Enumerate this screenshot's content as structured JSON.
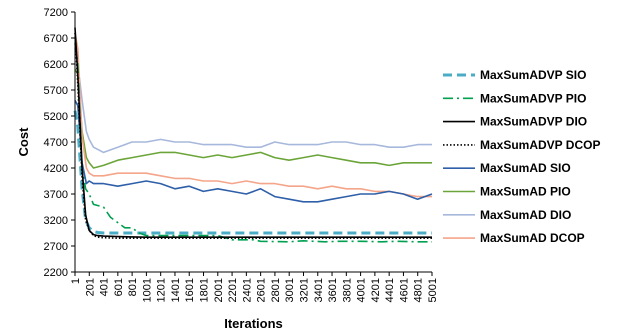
{
  "chart_data": {
    "type": "line",
    "title": "",
    "xlabel": "Iterations",
    "ylabel": "Cost",
    "ylim": [
      2200,
      7200
    ],
    "xlim": [
      1,
      5001
    ],
    "yticks": [
      2200,
      2700,
      3200,
      3700,
      4200,
      4700,
      5200,
      5700,
      6200,
      6700,
      7200
    ],
    "xticks": [
      1,
      201,
      401,
      601,
      801,
      1001,
      1201,
      1401,
      1601,
      1801,
      2001,
      2201,
      2401,
      2601,
      2801,
      3001,
      3201,
      3401,
      3601,
      3801,
      4001,
      4201,
      4401,
      4601,
      4801,
      5001
    ],
    "grid": false,
    "legend_position": "right",
    "series": [
      {
        "name": "MaxSumADVP SIO",
        "color": "#4BACC6",
        "style": "dashed-thick",
        "x": [
          1,
          40,
          100,
          150,
          200,
          260,
          320,
          400,
          600,
          1000,
          2000,
          3000,
          4000,
          5001
        ],
        "y": [
          5300,
          5000,
          3800,
          3200,
          3050,
          2980,
          2960,
          2950,
          2950,
          2950,
          2950,
          2950,
          2950,
          2950
        ]
      },
      {
        "name": "MaxSumADVP PIO",
        "color": "#00A050",
        "style": "dashdot",
        "x": [
          1,
          40,
          100,
          150,
          200,
          260,
          400,
          500,
          600,
          700,
          800,
          900,
          1000,
          1200,
          1500,
          2000,
          2200,
          2500,
          2600,
          3000,
          3200,
          3500,
          3700,
          4000,
          4300,
          4500,
          4800,
          5001
        ],
        "y": [
          6600,
          6200,
          4200,
          3800,
          3700,
          3500,
          3450,
          3250,
          3150,
          3050,
          3050,
          2950,
          2900,
          2900,
          2900,
          2900,
          2820,
          2820,
          2790,
          2780,
          2800,
          2780,
          2790,
          2790,
          2780,
          2790,
          2780,
          2780
        ]
      },
      {
        "name": "MaxSumADVP DIO",
        "color": "#000000",
        "style": "solid",
        "x": [
          1,
          40,
          100,
          150,
          200,
          260,
          320,
          400,
          600,
          1000,
          2000,
          3000,
          4000,
          5001
        ],
        "y": [
          6900,
          6000,
          4200,
          3300,
          3000,
          2920,
          2900,
          2890,
          2880,
          2870,
          2870,
          2870,
          2870,
          2870
        ]
      },
      {
        "name": "MaxSumADVP DCOP",
        "color": "#000000",
        "style": "dotted",
        "x": [
          1,
          40,
          100,
          150,
          200,
          260,
          320,
          400,
          600,
          1000,
          2000,
          3000,
          4000,
          5001
        ],
        "y": [
          6800,
          5800,
          4000,
          3200,
          3000,
          2900,
          2870,
          2860,
          2850,
          2850,
          2850,
          2850,
          2850,
          2850
        ]
      },
      {
        "name": "MaxSumAD SIO",
        "color": "#2E5FA8",
        "style": "solid",
        "x": [
          1,
          40,
          100,
          160,
          200,
          260,
          400,
          600,
          800,
          1000,
          1200,
          1400,
          1600,
          1800,
          2000,
          2200,
          2400,
          2600,
          2800,
          3000,
          3200,
          3400,
          3600,
          3800,
          4000,
          4200,
          4400,
          4600,
          4800,
          5001
        ],
        "y": [
          5500,
          5400,
          4300,
          3900,
          3950,
          3900,
          3900,
          3850,
          3900,
          3950,
          3900,
          3800,
          3850,
          3750,
          3800,
          3750,
          3700,
          3800,
          3650,
          3600,
          3550,
          3550,
          3600,
          3650,
          3700,
          3700,
          3750,
          3700,
          3600,
          3700
        ]
      },
      {
        "name": "MaxSumAD PIO",
        "color": "#6BA539",
        "style": "solid",
        "x": [
          1,
          40,
          100,
          160,
          200,
          260,
          400,
          600,
          800,
          1000,
          1200,
          1400,
          1600,
          1800,
          2000,
          2200,
          2400,
          2600,
          2800,
          3000,
          3200,
          3400,
          3600,
          3800,
          4000,
          4200,
          4400,
          4600,
          4800,
          5001
        ],
        "y": [
          6100,
          6000,
          4900,
          4400,
          4300,
          4200,
          4250,
          4350,
          4400,
          4450,
          4500,
          4500,
          4450,
          4400,
          4450,
          4400,
          4450,
          4500,
          4400,
          4350,
          4400,
          4450,
          4400,
          4350,
          4300,
          4300,
          4250,
          4300,
          4300,
          4300
        ]
      },
      {
        "name": "MaxSumAD DIO",
        "color": "#A6B8DC",
        "style": "solid",
        "x": [
          1,
          40,
          100,
          160,
          200,
          260,
          400,
          600,
          800,
          1000,
          1200,
          1400,
          1600,
          1800,
          2000,
          2200,
          2400,
          2600,
          2800,
          3000,
          3200,
          3400,
          3600,
          3800,
          4000,
          4200,
          4400,
          4600,
          4800,
          5001
        ],
        "y": [
          6500,
          6200,
          5500,
          4900,
          4750,
          4600,
          4500,
          4600,
          4700,
          4700,
          4750,
          4700,
          4700,
          4650,
          4650,
          4650,
          4600,
          4600,
          4700,
          4650,
          4650,
          4650,
          4700,
          4700,
          4650,
          4650,
          4600,
          4600,
          4650,
          4650
        ]
      },
      {
        "name": "MaxSumAD DCOP",
        "color": "#F4A58A",
        "style": "solid",
        "x": [
          1,
          40,
          100,
          160,
          200,
          260,
          400,
          600,
          800,
          1000,
          1200,
          1400,
          1600,
          1800,
          2000,
          2200,
          2400,
          2600,
          2800,
          3000,
          3200,
          3400,
          3600,
          3800,
          4000,
          4200,
          4400,
          4600,
          4800,
          5001
        ],
        "y": [
          6800,
          6500,
          4800,
          4200,
          4100,
          4050,
          4050,
          4100,
          4100,
          4100,
          4050,
          4000,
          4000,
          3950,
          3950,
          3900,
          3950,
          3900,
          3900,
          3850,
          3850,
          3800,
          3850,
          3800,
          3800,
          3750,
          3750,
          3700,
          3650,
          3650
        ]
      }
    ]
  }
}
